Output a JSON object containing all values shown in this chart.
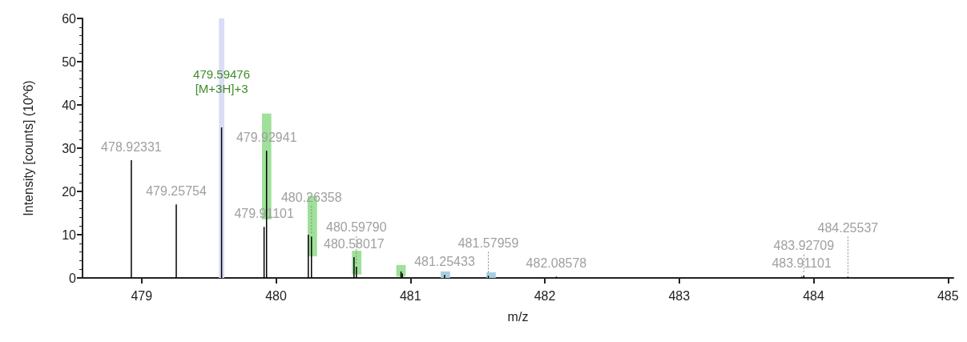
{
  "chart_data": {
    "type": "bar",
    "xlabel": "m/z",
    "ylabel": "Intensity [counts] (10^6)",
    "xlim": [
      478.56,
      485.04
    ],
    "xticks": [
      479,
      480,
      481,
      482,
      483,
      484,
      485
    ],
    "ylim": [
      0,
      60
    ],
    "yticks": [
      0,
      10,
      20,
      30,
      40,
      50,
      60
    ],
    "grid": false,
    "series": [
      {
        "color": "#000000",
        "x": [
          478.92331,
          479.25754,
          479.59476,
          479.91101,
          479.92941,
          480.24,
          480.26358,
          480.58017,
          480.5979,
          480.93,
          480.94,
          481.25433,
          481.57959,
          482.08578,
          483.91101,
          483.92709,
          484.25537
        ],
        "values": [
          27.2,
          17.0,
          34.8,
          11.8,
          29.4,
          10.0,
          9.6,
          4.8,
          2.6,
          1.5,
          1.0,
          0.7,
          0.5,
          0.3,
          0.3,
          0.6,
          0.3
        ]
      },
      {
        "color": "#9fe09a",
        "x": [
          479.93,
          480.27,
          480.6,
          480.93
        ],
        "base": [
          13.5,
          5.0,
          0.8,
          0.3
        ],
        "values": [
          24.5,
          14.0,
          5.5,
          2.7
        ]
      },
      {
        "color": "#a9cfe0",
        "x": [
          481.26,
          481.6
        ],
        "base": [
          0,
          0
        ],
        "values": [
          1.5,
          1.3
        ]
      }
    ],
    "bands": [
      {
        "axis": "x",
        "from": 479.575,
        "to": 479.615,
        "color": "#dcdcf6"
      }
    ],
    "annotations": [
      {
        "text": "479.59476\n[M+3H]+3",
        "x": 479.59476,
        "y": 34.8
      },
      {
        "text": "478.92331",
        "x": 478.92331,
        "y": 27.2
      },
      {
        "text": "479.25754",
        "x": 479.25754,
        "y": 17.0
      },
      {
        "text": "479.92941",
        "x": 479.92941,
        "y": 29.4
      },
      {
        "text": "479.91101",
        "x": 479.91101,
        "y": 11.8
      },
      {
        "text": "480.26358",
        "x": 480.26358,
        "y": 9.6
      },
      {
        "text": "480.58017",
        "x": 480.58017,
        "y": 4.8
      },
      {
        "text": "480.59790",
        "x": 480.5979,
        "y": 2.6
      },
      {
        "text": "481.25433",
        "x": 481.25433,
        "y": 0.7
      },
      {
        "text": "481.57959",
        "x": 481.57959,
        "y": 0.5
      },
      {
        "text": "482.08578",
        "x": 482.08578,
        "y": 0.3
      },
      {
        "text": "483.91101",
        "x": 483.91101,
        "y": 0.3
      },
      {
        "text": "483.92709",
        "x": 483.92709,
        "y": 0.6
      },
      {
        "text": "484.25537",
        "x": 484.25537,
        "y": 0.3
      }
    ]
  }
}
